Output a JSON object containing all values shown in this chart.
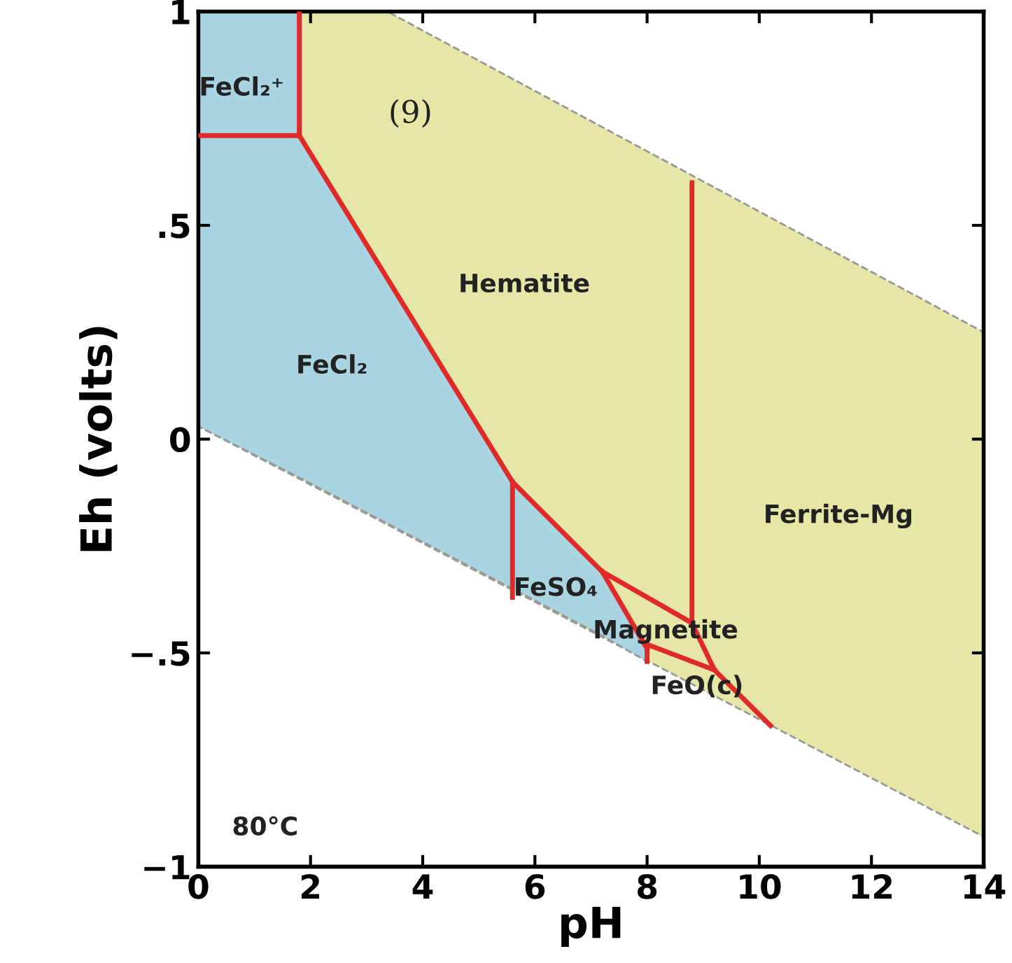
{
  "chart_data": {
    "type": "line",
    "xlabel": "pH",
    "ylabel": "Eh (volts)",
    "xlim": [
      0,
      14
    ],
    "ylim": [
      -1,
      1
    ],
    "xticks": [
      0,
      2,
      4,
      6,
      8,
      10,
      12,
      14
    ],
    "yticks": [
      {
        "value": -1,
        "label": "−1"
      },
      {
        "value": -0.5,
        "label": "−.5"
      },
      0,
      {
        "value": 0.5,
        "label": ".5"
      },
      1
    ],
    "grid": false,
    "legend": false,
    "series": [
      {
        "type": "area",
        "color": "#e6e6a6",
        "line_style": "dashed",
        "x": [
          0,
          3.37,
          14
        ],
        "values": [
          null,
          null,
          null
        ],
        "upper": [
          1,
          1,
          0.25
        ],
        "lower": [
          0.03,
          -0.2,
          -0.93
        ]
      },
      {
        "type": "area",
        "color": "#a9d5e2",
        "line_style": "dashed",
        "x": [
          0,
          1.8,
          1.8,
          5.6,
          7.2,
          8.0
        ],
        "values": [
          null,
          null,
          null,
          null,
          null,
          null
        ],
        "upper": [
          1,
          1,
          0.71,
          -0.1,
          -0.31,
          -0.5
        ],
        "lower": [
          0.03,
          -0.09,
          -0.09,
          -0.35,
          -0.46,
          -0.52
        ]
      },
      {
        "type": "line",
        "color": "#e02a2a",
        "x": [
          0,
          1.8
        ],
        "values": [
          0.71,
          0.71
        ]
      },
      {
        "type": "line",
        "color": "#e02a2a",
        "x": [
          1.8,
          1.8
        ],
        "values": [
          0.71,
          1
        ]
      },
      {
        "type": "line",
        "color": "#e02a2a",
        "x": [
          1.8,
          5.6,
          7.2,
          8.8
        ],
        "values": [
          0.71,
          -0.1,
          -0.31,
          -0.43
        ]
      },
      {
        "type": "line",
        "color": "#e02a2a",
        "x": [
          5.6,
          5.6
        ],
        "values": [
          -0.1,
          -0.37
        ]
      },
      {
        "type": "line",
        "color": "#e02a2a",
        "x": [
          7.2,
          8.0
        ],
        "values": [
          -0.31,
          -0.49
        ]
      },
      {
        "type": "line",
        "color": "#e02a2a",
        "x": [
          8.0,
          8.0
        ],
        "values": [
          -0.48,
          -0.52
        ]
      },
      {
        "type": "line",
        "color": "#e02a2a",
        "x": [
          8.0,
          9.2
        ],
        "values": [
          -0.48,
          -0.54
        ]
      },
      {
        "type": "line",
        "color": "#e02a2a",
        "x": [
          8.8,
          8.8,
          9.2,
          10.2
        ],
        "values": [
          0.6,
          -0.43,
          -0.54,
          -0.67
        ]
      }
    ],
    "annotations": [
      "FeCl₂⁺",
      "(9)",
      "Hematite",
      "FeCl₂",
      "Ferrite-Mg",
      "FeSO₄",
      "Magnetite",
      "FeO(c)",
      "80°C"
    ]
  }
}
